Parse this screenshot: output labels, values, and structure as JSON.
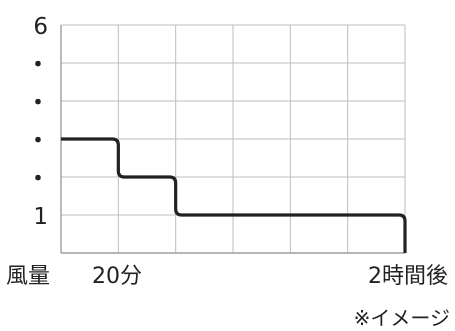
{
  "chart_data": {
    "type": "line",
    "step": true,
    "y_tick_labels": [
      "6",
      "・",
      "・",
      "・",
      "・",
      "1"
    ],
    "x_labels": {
      "axis_label": "風量",
      "start": "20分",
      "end": "2時間後"
    },
    "note": "※イメージ",
    "x_range": [
      0,
      6
    ],
    "y_range": [
      0,
      6
    ],
    "grid": true,
    "series": [
      {
        "points": [
          [
            0,
            3
          ],
          [
            1,
            3
          ],
          [
            1,
            2
          ],
          [
            2,
            2
          ],
          [
            2,
            1
          ],
          [
            6,
            1
          ],
          [
            6,
            0
          ]
        ]
      }
    ],
    "colors": {
      "line": "#222222",
      "grid": "#bdbdbd",
      "axis": "#9e9e9e"
    }
  }
}
